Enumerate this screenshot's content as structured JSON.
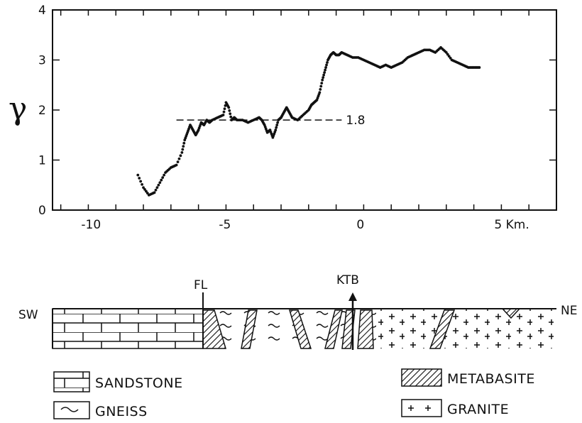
{
  "chart_data": {
    "type": "scatter",
    "ylabel": "γ",
    "x_unit_label": "5 Km.",
    "x_ticks": [
      -10,
      -5,
      0,
      5
    ],
    "x_tick_labels": [
      "-10",
      "-5",
      "0",
      "5 Km."
    ],
    "y_ticks": [
      0,
      1,
      2,
      3,
      4
    ],
    "y_tick_labels": [
      "0",
      "1",
      "2",
      "3",
      "4"
    ],
    "xlim": [
      -11.3,
      7
    ],
    "ylim": [
      0,
      4
    ],
    "reference_line": {
      "y": 1.8,
      "x_start": -6.8,
      "x_end": -0.8,
      "label": "1.8"
    },
    "series": [
      {
        "x": [
          -8.2,
          -8.0,
          -7.8,
          -7.6,
          -7.4,
          -7.2,
          -7.0,
          -6.8,
          -6.6,
          -6.5,
          -6.4,
          -6.3,
          -6.2,
          -6.1,
          -6.0,
          -5.9,
          -5.8,
          -5.7,
          -5.6,
          -5.5,
          -5.3,
          -5.1,
          -5.0,
          -4.9,
          -4.8,
          -4.7,
          -4.6,
          -4.4,
          -4.2,
          -4.0,
          -3.8,
          -3.7,
          -3.6,
          -3.5,
          -3.4,
          -3.3,
          -3.2,
          -3.1,
          -3.0,
          -2.9,
          -2.8,
          -2.7,
          -2.6,
          -2.4,
          -2.2,
          -2.0,
          -1.9,
          -1.8,
          -1.7,
          -1.6,
          -1.5,
          -1.4,
          -1.3,
          -1.2,
          -1.1,
          -1.0,
          -0.9,
          -0.8,
          -0.6,
          -0.4,
          -0.2,
          0.0,
          0.2,
          0.4,
          0.6,
          0.8,
          1.0,
          1.2,
          1.4,
          1.6,
          1.8,
          2.0,
          2.2,
          2.4,
          2.6,
          2.8,
          3.0,
          3.2,
          3.4,
          3.6,
          3.8,
          4.0,
          4.2
        ],
        "y": [
          0.7,
          0.45,
          0.3,
          0.35,
          0.55,
          0.75,
          0.85,
          0.9,
          1.15,
          1.4,
          1.55,
          1.7,
          1.6,
          1.5,
          1.6,
          1.75,
          1.7,
          1.8,
          1.75,
          1.8,
          1.85,
          1.9,
          2.15,
          2.05,
          1.8,
          1.85,
          1.8,
          1.8,
          1.75,
          1.8,
          1.85,
          1.8,
          1.7,
          1.55,
          1.6,
          1.45,
          1.6,
          1.8,
          1.85,
          1.95,
          2.05,
          1.95,
          1.85,
          1.8,
          1.9,
          2.0,
          2.1,
          2.15,
          2.2,
          2.35,
          2.6,
          2.8,
          3.0,
          3.1,
          3.15,
          3.1,
          3.1,
          3.15,
          3.1,
          3.05,
          3.05,
          3.0,
          2.95,
          2.9,
          2.85,
          2.9,
          2.85,
          2.9,
          2.95,
          3.05,
          3.1,
          3.15,
          3.2,
          3.2,
          3.15,
          3.25,
          3.15,
          3.0,
          2.95,
          2.9,
          2.85,
          2.85,
          2.85
        ]
      }
    ]
  },
  "section": {
    "fl_label": "FL",
    "ktb_label": "KTB",
    "sw_label": "SW",
    "ne_label": "NE"
  },
  "legend": {
    "sandstone": "SANDSTONE",
    "gneiss": "GNEISS",
    "metabasite": "METABASITE",
    "granite": "GRANITE"
  }
}
